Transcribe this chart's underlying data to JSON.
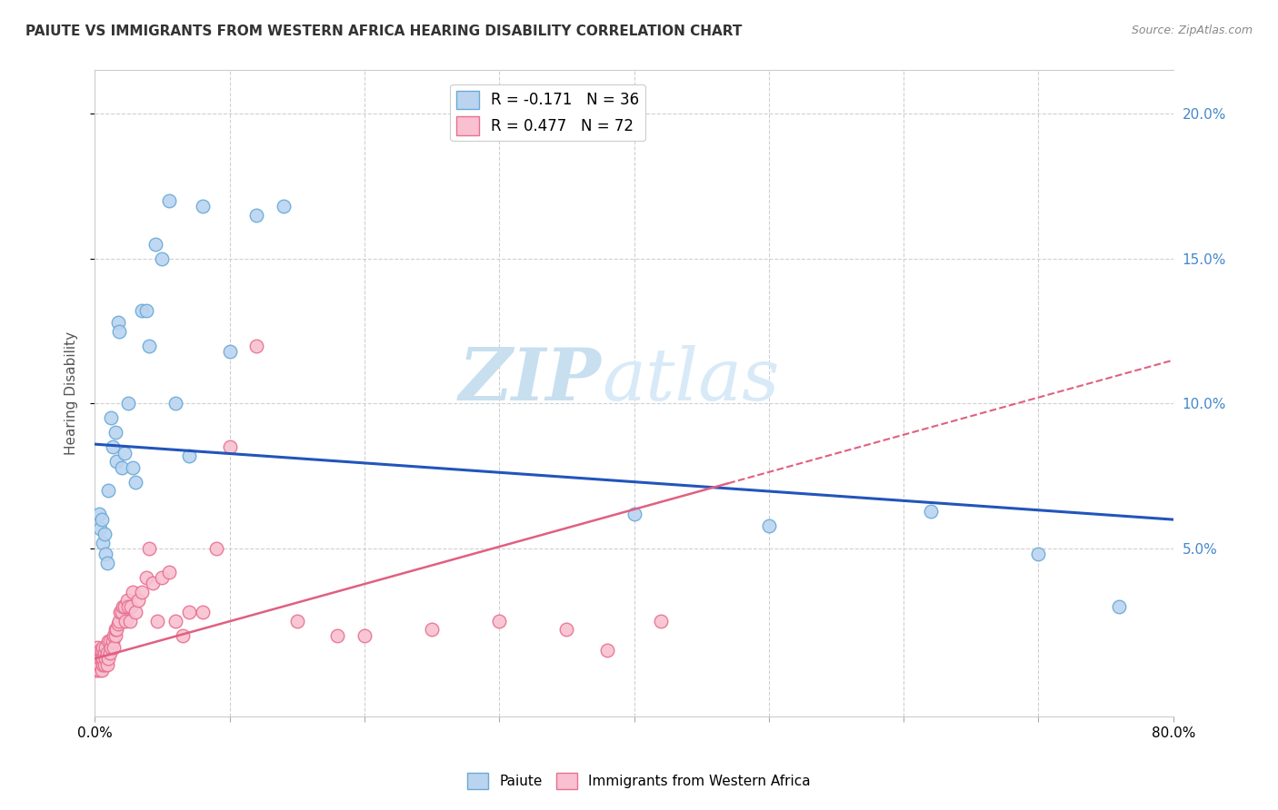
{
  "title": "PAIUTE VS IMMIGRANTS FROM WESTERN AFRICA HEARING DISABILITY CORRELATION CHART",
  "source": "Source: ZipAtlas.com",
  "ylabel": "Hearing Disability",
  "xlim": [
    0.0,
    0.8
  ],
  "ylim": [
    -0.008,
    0.215
  ],
  "ytick_vals": [
    0.05,
    0.1,
    0.15,
    0.2
  ],
  "ytick_labels": [
    "5.0%",
    "10.0%",
    "15.0%",
    "20.0%"
  ],
  "xtick_vals": [
    0.0,
    0.1,
    0.2,
    0.3,
    0.4,
    0.5,
    0.6,
    0.7,
    0.8
  ],
  "legend_paiute_r": "R = -0.171",
  "legend_paiute_n": "N = 36",
  "legend_imm_r": "R = 0.477",
  "legend_imm_n": "N = 72",
  "background_color": "#ffffff",
  "grid_color": "#d0d0d0",
  "paiute_face_color": "#bad4f0",
  "paiute_edge_color": "#6aaad8",
  "imm_face_color": "#f8c0d0",
  "imm_edge_color": "#e87090",
  "paiute_line_color": "#2255bb",
  "imm_line_color": "#e06080",
  "watermark_color": "#ddeeff",
  "paiute_x": [
    0.003,
    0.004,
    0.005,
    0.006,
    0.007,
    0.008,
    0.009,
    0.01,
    0.012,
    0.013,
    0.015,
    0.016,
    0.017,
    0.018,
    0.02,
    0.022,
    0.025,
    0.028,
    0.03,
    0.035,
    0.038,
    0.04,
    0.045,
    0.05,
    0.055,
    0.06,
    0.07,
    0.08,
    0.1,
    0.12,
    0.14,
    0.4,
    0.5,
    0.62,
    0.7,
    0.76
  ],
  "paiute_y": [
    0.062,
    0.057,
    0.06,
    0.052,
    0.055,
    0.048,
    0.045,
    0.07,
    0.095,
    0.085,
    0.09,
    0.08,
    0.128,
    0.125,
    0.078,
    0.083,
    0.1,
    0.078,
    0.073,
    0.132,
    0.132,
    0.12,
    0.155,
    0.15,
    0.17,
    0.1,
    0.082,
    0.168,
    0.118,
    0.165,
    0.168,
    0.062,
    0.058,
    0.063,
    0.048,
    0.03
  ],
  "imm_x": [
    0.001,
    0.001,
    0.001,
    0.002,
    0.002,
    0.002,
    0.002,
    0.003,
    0.003,
    0.003,
    0.004,
    0.004,
    0.004,
    0.005,
    0.005,
    0.005,
    0.006,
    0.006,
    0.006,
    0.007,
    0.007,
    0.008,
    0.008,
    0.009,
    0.009,
    0.01,
    0.01,
    0.011,
    0.011,
    0.012,
    0.013,
    0.014,
    0.014,
    0.015,
    0.015,
    0.016,
    0.017,
    0.018,
    0.019,
    0.02,
    0.021,
    0.022,
    0.023,
    0.024,
    0.025,
    0.026,
    0.027,
    0.028,
    0.03,
    0.032,
    0.035,
    0.038,
    0.04,
    0.043,
    0.046,
    0.05,
    0.055,
    0.06,
    0.065,
    0.07,
    0.08,
    0.09,
    0.1,
    0.12,
    0.15,
    0.18,
    0.2,
    0.25,
    0.3,
    0.35,
    0.38,
    0.42
  ],
  "imm_y": [
    0.008,
    0.01,
    0.012,
    0.01,
    0.012,
    0.014,
    0.016,
    0.008,
    0.01,
    0.012,
    0.01,
    0.012,
    0.015,
    0.008,
    0.012,
    0.015,
    0.01,
    0.012,
    0.016,
    0.01,
    0.014,
    0.012,
    0.016,
    0.01,
    0.014,
    0.012,
    0.018,
    0.014,
    0.018,
    0.016,
    0.018,
    0.02,
    0.016,
    0.02,
    0.022,
    0.022,
    0.024,
    0.025,
    0.028,
    0.028,
    0.03,
    0.03,
    0.025,
    0.032,
    0.03,
    0.025,
    0.03,
    0.035,
    0.028,
    0.032,
    0.035,
    0.04,
    0.05,
    0.038,
    0.025,
    0.04,
    0.042,
    0.025,
    0.02,
    0.028,
    0.028,
    0.05,
    0.085,
    0.12,
    0.025,
    0.02,
    0.02,
    0.022,
    0.025,
    0.022,
    0.015,
    0.025
  ],
  "paiute_line_x": [
    0.0,
    0.8
  ],
  "paiute_line_y": [
    0.086,
    0.06
  ],
  "imm_line_x": [
    0.0,
    0.8
  ],
  "imm_line_y": [
    0.012,
    0.115
  ]
}
